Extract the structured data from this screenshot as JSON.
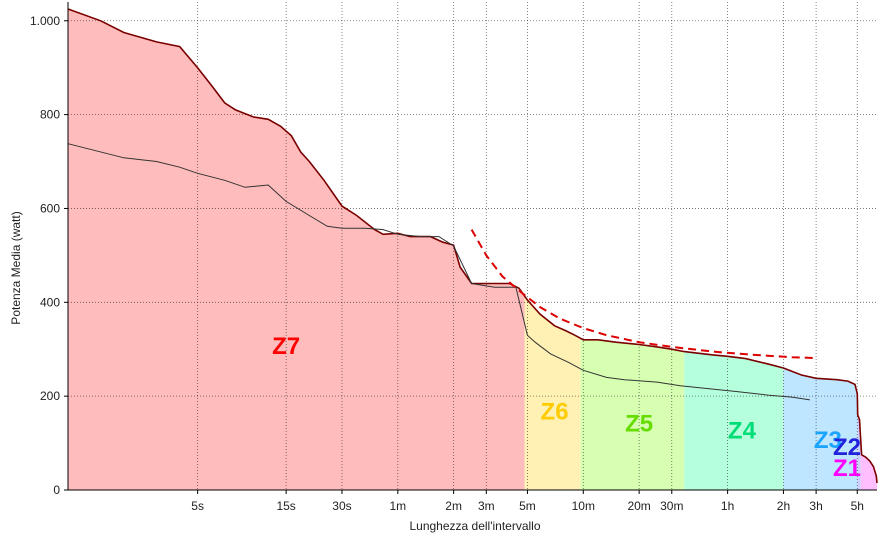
{
  "chart_data": {
    "type": "area",
    "xlabel": "Lunghezza dell'intervallo",
    "ylabel": "Potenza Media (watt)",
    "x_scale": "log",
    "x_unit": "seconds",
    "xlim": [
      1,
      23000
    ],
    "ylim": [
      0,
      1040
    ],
    "grid": true,
    "x_ticks": [
      {
        "value": 5,
        "label": "5s"
      },
      {
        "value": 15,
        "label": "15s"
      },
      {
        "value": 30,
        "label": "30s"
      },
      {
        "value": 60,
        "label": "1m"
      },
      {
        "value": 120,
        "label": "2m"
      },
      {
        "value": 180,
        "label": "3m"
      },
      {
        "value": 300,
        "label": "5m"
      },
      {
        "value": 600,
        "label": "10m"
      },
      {
        "value": 1200,
        "label": "20m"
      },
      {
        "value": 1800,
        "label": "30m"
      },
      {
        "value": 3600,
        "label": "1h"
      },
      {
        "value": 7200,
        "label": "2h"
      },
      {
        "value": 10800,
        "label": "3h"
      },
      {
        "value": 18000,
        "label": "5h"
      }
    ],
    "y_ticks": [
      {
        "value": 0,
        "label": "0"
      },
      {
        "value": 200,
        "label": "200"
      },
      {
        "value": 400,
        "label": "400"
      },
      {
        "value": 600,
        "label": "600"
      },
      {
        "value": 800,
        "label": "800"
      },
      {
        "value": 1000,
        "label": "1.000"
      }
    ],
    "zones": [
      {
        "name": "Z7",
        "x_start": 1,
        "x_end": 290,
        "color": "#ffbcbc",
        "label_color": "#ff0000",
        "label_x": 15,
        "label_y": 290
      },
      {
        "name": "Z6",
        "x_start": 290,
        "x_end": 580,
        "color": "#fff0b4",
        "label_color": "#ffcc00",
        "label_x": 420,
        "label_y": 150
      },
      {
        "name": "Z5",
        "x_start": 580,
        "x_end": 2100,
        "color": "#d6ffb2",
        "label_color": "#66dd00",
        "label_x": 1200,
        "label_y": 125
      },
      {
        "name": "Z4",
        "x_start": 2100,
        "x_end": 7200,
        "color": "#b6ffdc",
        "label_color": "#00dd77",
        "label_x": 4300,
        "label_y": 110
      },
      {
        "name": "Z3",
        "x_start": 7200,
        "x_end": 18000,
        "color": "#bfe6ff",
        "label_color": "#1aa3ff",
        "label_x": 12500,
        "label_y": 90
      },
      {
        "name": "Z2",
        "x_start": 18000,
        "x_end": 18800,
        "color": "#cfcfff",
        "label_color": "#2222dd",
        "label_x": 17000,
        "label_y": 75
      },
      {
        "name": "Z1",
        "x_start": 18800,
        "x_end": 23000,
        "color": "#ffbfff",
        "label_color": "#ff00ff",
        "label_x": 31000,
        "label_y": 30
      }
    ],
    "series": [
      {
        "name": "",
        "kind": "best-power-curve",
        "color": "#7a0000",
        "x": [
          1,
          1.5,
          2,
          3,
          4,
          5,
          6,
          7,
          8,
          10,
          12,
          14,
          16,
          18,
          20,
          24,
          30,
          36,
          45,
          50,
          60,
          70,
          90,
          105,
          120,
          130,
          150,
          170,
          200,
          240,
          270,
          300,
          350,
          420,
          480,
          540,
          600,
          720,
          900,
          1200,
          1500,
          1800,
          2100,
          3000,
          3600,
          4500,
          6000,
          7200,
          9000,
          10800,
          14000,
          16000,
          17500,
          18000,
          18100,
          18500,
          19000,
          20000,
          21000,
          22000,
          22800,
          23000
        ],
        "y": [
          1025,
          1000,
          975,
          955,
          945,
          900,
          860,
          825,
          810,
          795,
          790,
          775,
          755,
          720,
          700,
          660,
          605,
          585,
          555,
          545,
          547,
          540,
          540,
          528,
          522,
          475,
          440,
          440,
          440,
          440,
          430,
          405,
          375,
          350,
          340,
          330,
          320,
          320,
          315,
          310,
          305,
          300,
          295,
          288,
          285,
          280,
          268,
          260,
          245,
          238,
          235,
          232,
          225,
          205,
          160,
          150,
          75,
          70,
          62,
          50,
          30,
          15
        ]
      },
      {
        "name": "",
        "kind": "secondary-curve",
        "color": "#333333",
        "x": [
          1,
          2,
          3,
          4,
          5,
          7,
          9,
          12,
          15,
          20,
          25,
          30,
          40,
          50,
          60,
          80,
          100,
          120,
          150,
          200,
          260,
          300,
          330,
          400,
          500,
          600,
          800,
          1000,
          1500,
          2000,
          3000,
          4000,
          6000,
          8000,
          10000
        ],
        "y": [
          738,
          708,
          700,
          688,
          675,
          660,
          645,
          650,
          615,
          585,
          562,
          558,
          558,
          555,
          545,
          540,
          540,
          520,
          440,
          432,
          432,
          330,
          315,
          290,
          272,
          255,
          240,
          235,
          230,
          222,
          215,
          210,
          202,
          198,
          192
        ]
      },
      {
        "name": "",
        "kind": "critical-power-model",
        "color": "#dd0000",
        "dashed": true,
        "x": [
          150,
          180,
          220,
          280,
          350,
          450,
          600,
          800,
          1200,
          1800,
          3000,
          5000,
          8000,
          10800
        ],
        "y": [
          555,
          500,
          455,
          420,
          390,
          365,
          345,
          330,
          315,
          305,
          295,
          288,
          283,
          281
        ]
      }
    ]
  }
}
